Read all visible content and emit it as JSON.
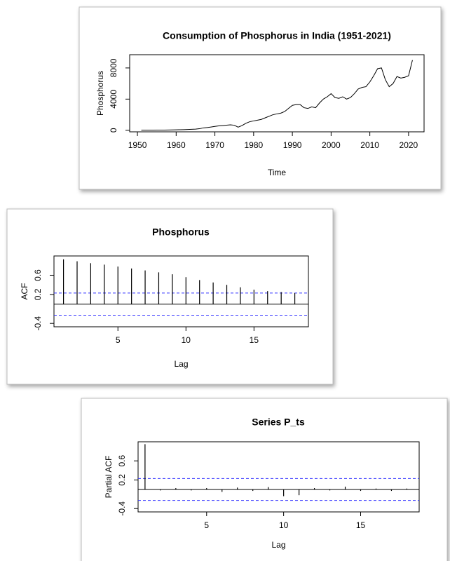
{
  "chart_data": [
    {
      "type": "line",
      "title": "Consumption of Phosphorus in India (1951-2021)",
      "xlabel": "Time",
      "ylabel": "Phosphorus",
      "x": [
        1951,
        1952,
        1953,
        1954,
        1955,
        1956,
        1957,
        1958,
        1959,
        1960,
        1961,
        1962,
        1963,
        1964,
        1965,
        1966,
        1967,
        1968,
        1969,
        1970,
        1971,
        1972,
        1973,
        1974,
        1975,
        1976,
        1977,
        1978,
        1979,
        1980,
        1981,
        1982,
        1983,
        1984,
        1985,
        1986,
        1987,
        1988,
        1989,
        1990,
        1991,
        1992,
        1993,
        1994,
        1995,
        1996,
        1997,
        1998,
        1999,
        2000,
        2001,
        2002,
        2003,
        2004,
        2005,
        2006,
        2007,
        2008,
        2009,
        2010,
        2011,
        2012,
        2013,
        2014,
        2015,
        2016,
        2017,
        2018,
        2019,
        2020,
        2021
      ],
      "series": [
        {
          "color": "#000000",
          "values": [
            10,
            12,
            15,
            18,
            20,
            25,
            30,
            40,
            50,
            60,
            70,
            80,
            100,
            130,
            150,
            200,
            300,
            350,
            420,
            500,
            560,
            600,
            650,
            700,
            650,
            400,
            600,
            900,
            1100,
            1200,
            1300,
            1400,
            1600,
            1800,
            2000,
            2100,
            2200,
            2400,
            2800,
            3200,
            3300,
            3300,
            2900,
            2800,
            3000,
            2900,
            3500,
            4000,
            4300,
            4700,
            4200,
            4100,
            4300,
            4000,
            4200,
            4700,
            5300,
            5500,
            5600,
            6200,
            7000,
            7900,
            8000,
            6500,
            5600,
            6000,
            6900,
            6700,
            6800,
            7000,
            9000
          ]
        }
      ],
      "xlim": [
        1948,
        2024
      ],
      "ylim": [
        -200,
        9700
      ],
      "xticks": [
        1950,
        1960,
        1970,
        1980,
        1990,
        2000,
        2010,
        2020
      ],
      "yticks": [
        0,
        4000,
        8000
      ]
    },
    {
      "type": "acf",
      "title": "Phosphorus",
      "xlabel": "Lag",
      "ylabel": "ACF",
      "x": [
        1,
        2,
        3,
        4,
        5,
        6,
        7,
        8,
        9,
        10,
        11,
        12,
        13,
        14,
        15,
        16,
        17,
        18
      ],
      "values": [
        0.93,
        0.89,
        0.85,
        0.82,
        0.78,
        0.74,
        0.7,
        0.66,
        0.62,
        0.56,
        0.5,
        0.45,
        0.4,
        0.35,
        0.3,
        0.27,
        0.25,
        0.23
      ],
      "color": "#000000",
      "hlines": [
        0.23,
        -0.23
      ],
      "hline_color": "#3333ff",
      "xlim": [
        0.3,
        19
      ],
      "ylim": [
        -0.47,
        1.0
      ],
      "xticks": [
        5,
        10,
        15
      ],
      "yticks": [
        -0.4,
        0.2,
        0.6
      ]
    },
    {
      "type": "acf",
      "title": "Series  P_ts",
      "xlabel": "Lag",
      "ylabel": "Partial ACF",
      "x": [
        1,
        2,
        3,
        4,
        5,
        6,
        7,
        8,
        9,
        10,
        11,
        12,
        13,
        14,
        15,
        16,
        17,
        18
      ],
      "values": [
        0.95,
        -0.02,
        0.03,
        -0.02,
        0.03,
        -0.05,
        0.04,
        -0.03,
        0.05,
        -0.14,
        -0.12,
        0.03,
        -0.02,
        0.06,
        -0.03,
        0.02,
        -0.03,
        0.02
      ],
      "color": "#000000",
      "hlines": [
        0.23,
        -0.23
      ],
      "hline_color": "#3333ff",
      "xlim": [
        0.55,
        18.8
      ],
      "ylim": [
        -0.47,
        1.0
      ],
      "xticks": [
        5,
        10,
        15
      ],
      "yticks": [
        -0.4,
        0.2,
        0.6
      ]
    }
  ]
}
